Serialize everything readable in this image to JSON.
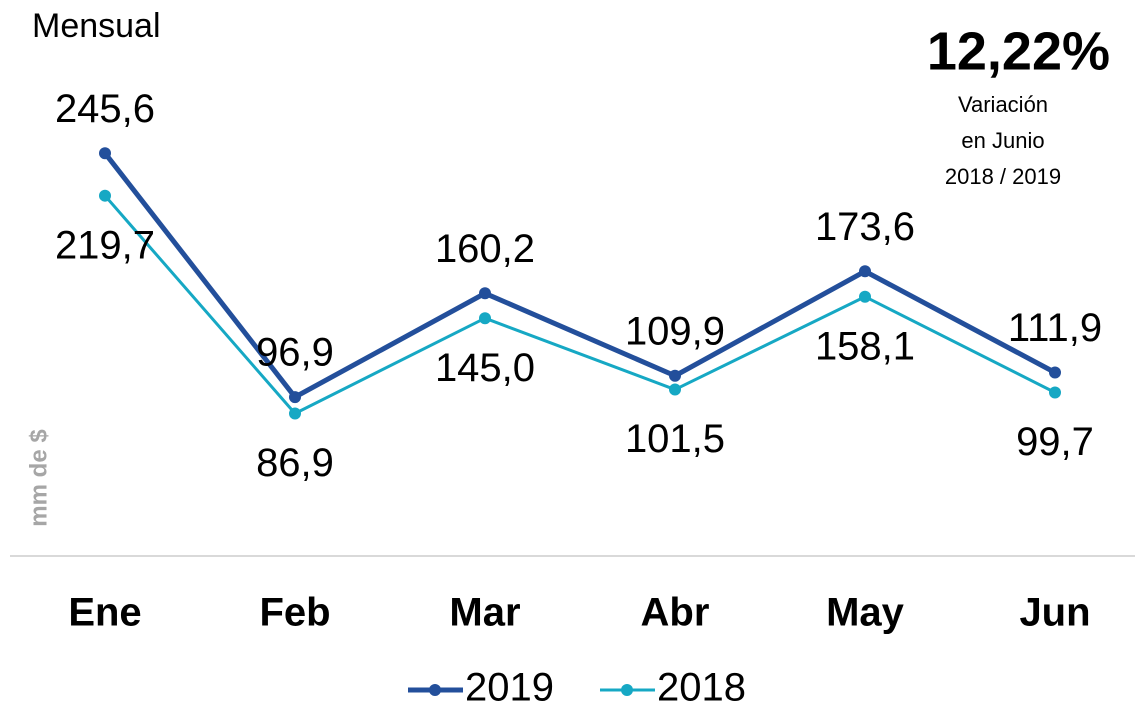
{
  "chart_data": {
    "type": "line",
    "title": "Mensual",
    "annotation": {
      "value": "12,22%",
      "lines": [
        "Variación",
        "en Junio",
        "2018 / 2019"
      ]
    },
    "y_label": "mm de $",
    "categories": [
      "Ene",
      "Feb",
      "Mar",
      "Abr",
      "May",
      "Jun"
    ],
    "series": [
      {
        "name": "2019",
        "color": "#234f9b",
        "values": [
          245.6,
          96.9,
          160.2,
          109.9,
          173.6,
          111.9
        ],
        "value_labels": [
          "245,6",
          "96,9",
          "160,2",
          "109,9",
          "173,6",
          "111,9"
        ]
      },
      {
        "name": "2018",
        "color": "#16a8c4",
        "values": [
          219.7,
          86.9,
          145.0,
          101.5,
          158.1,
          99.7
        ],
        "value_labels": [
          "219,7",
          "86,9",
          "145,0",
          "101,5",
          "158,1",
          "99,7"
        ]
      }
    ],
    "ylim": [
      0,
      300
    ],
    "legend": "bottom"
  }
}
